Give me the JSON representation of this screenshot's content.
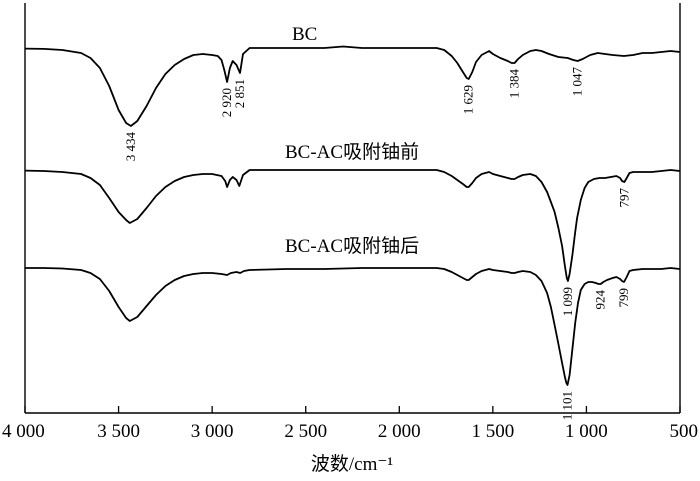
{
  "chart_data": {
    "type": "line",
    "xlabel": "波数/cm⁻¹",
    "ylabel": "",
    "xlim": [
      4000,
      500
    ],
    "x_reversed": true,
    "y_axis_shown": false,
    "grid": false,
    "x_ticks": [
      4000,
      3500,
      3000,
      2500,
      2000,
      1500,
      1000,
      500
    ],
    "x_tick_labels": [
      "4 000",
      "3 500",
      "3 000",
      "2 500",
      "2 000",
      "1 500",
      "1 000",
      "500"
    ],
    "series": [
      {
        "name": "BC",
        "points": [
          [
            4000,
            0.6
          ],
          [
            3900,
            0.9
          ],
          [
            3800,
            2
          ],
          [
            3700,
            5
          ],
          [
            3650,
            10
          ],
          [
            3600,
            20
          ],
          [
            3550,
            38
          ],
          [
            3500,
            62
          ],
          [
            3460,
            75
          ],
          [
            3434,
            78
          ],
          [
            3400,
            73
          ],
          [
            3350,
            58
          ],
          [
            3300,
            40
          ],
          [
            3250,
            26
          ],
          [
            3200,
            17
          ],
          [
            3150,
            11
          ],
          [
            3100,
            7
          ],
          [
            3050,
            6
          ],
          [
            3000,
            7
          ],
          [
            2970,
            8
          ],
          [
            2950,
            12
          ],
          [
            2935,
            22
          ],
          [
            2920,
            34
          ],
          [
            2905,
            20
          ],
          [
            2890,
            13
          ],
          [
            2870,
            17
          ],
          [
            2851,
            25
          ],
          [
            2835,
            6
          ],
          [
            2800,
            0
          ],
          [
            2600,
            0
          ],
          [
            2400,
            0
          ],
          [
            2300,
            -1.5
          ],
          [
            2200,
            0
          ],
          [
            2000,
            0
          ],
          [
            1800,
            0
          ],
          [
            1760,
            2
          ],
          [
            1720,
            8
          ],
          [
            1690,
            15
          ],
          [
            1660,
            24
          ],
          [
            1640,
            30
          ],
          [
            1629,
            31
          ],
          [
            1610,
            24
          ],
          [
            1590,
            14
          ],
          [
            1560,
            7
          ],
          [
            1520,
            3
          ],
          [
            1500,
            6
          ],
          [
            1460,
            10
          ],
          [
            1420,
            13
          ],
          [
            1400,
            15
          ],
          [
            1384,
            15
          ],
          [
            1365,
            11
          ],
          [
            1340,
            7
          ],
          [
            1300,
            3
          ],
          [
            1270,
            2
          ],
          [
            1240,
            3
          ],
          [
            1200,
            6
          ],
          [
            1150,
            9
          ],
          [
            1100,
            10
          ],
          [
            1070,
            12
          ],
          [
            1047,
            13
          ],
          [
            1020,
            11
          ],
          [
            980,
            7
          ],
          [
            940,
            5
          ],
          [
            900,
            6
          ],
          [
            860,
            7
          ],
          [
            800,
            8
          ],
          [
            750,
            7
          ],
          [
            700,
            5
          ],
          [
            650,
            5
          ],
          [
            600,
            4
          ],
          [
            550,
            3
          ],
          [
            500,
            4
          ]
        ]
      },
      {
        "name": "BC-AC吸附铀前",
        "points": [
          [
            4000,
            0.6
          ],
          [
            3900,
            1
          ],
          [
            3800,
            2
          ],
          [
            3700,
            4
          ],
          [
            3650,
            8
          ],
          [
            3600,
            15
          ],
          [
            3550,
            28
          ],
          [
            3500,
            42
          ],
          [
            3460,
            50
          ],
          [
            3440,
            53
          ],
          [
            3400,
            49
          ],
          [
            3350,
            38
          ],
          [
            3300,
            26
          ],
          [
            3250,
            17
          ],
          [
            3200,
            11
          ],
          [
            3150,
            7
          ],
          [
            3100,
            5
          ],
          [
            3050,
            4
          ],
          [
            3000,
            4
          ],
          [
            2950,
            6
          ],
          [
            2930,
            11
          ],
          [
            2920,
            17
          ],
          [
            2905,
            10
          ],
          [
            2890,
            7
          ],
          [
            2870,
            10
          ],
          [
            2855,
            16
          ],
          [
            2835,
            5
          ],
          [
            2800,
            0
          ],
          [
            2600,
            0
          ],
          [
            2400,
            0
          ],
          [
            2200,
            0
          ],
          [
            2000,
            0
          ],
          [
            1800,
            0
          ],
          [
            1760,
            2
          ],
          [
            1720,
            6
          ],
          [
            1690,
            10
          ],
          [
            1660,
            14
          ],
          [
            1640,
            17
          ],
          [
            1629,
            17
          ],
          [
            1610,
            13
          ],
          [
            1590,
            8
          ],
          [
            1560,
            4
          ],
          [
            1520,
            2
          ],
          [
            1500,
            4
          ],
          [
            1460,
            6
          ],
          [
            1420,
            8
          ],
          [
            1400,
            9
          ],
          [
            1384,
            9
          ],
          [
            1365,
            7
          ],
          [
            1340,
            5
          ],
          [
            1300,
            4
          ],
          [
            1270,
            6
          ],
          [
            1240,
            12
          ],
          [
            1210,
            22
          ],
          [
            1190,
            32
          ],
          [
            1170,
            42
          ],
          [
            1150,
            58
          ],
          [
            1130,
            76
          ],
          [
            1115,
            96
          ],
          [
            1105,
            108
          ],
          [
            1099,
            111
          ],
          [
            1090,
            104
          ],
          [
            1075,
            85
          ],
          [
            1060,
            62
          ],
          [
            1050,
            48
          ],
          [
            1030,
            30
          ],
          [
            1010,
            18
          ],
          [
            990,
            12
          ],
          [
            960,
            9
          ],
          [
            930,
            8
          ],
          [
            900,
            8
          ],
          [
            870,
            7
          ],
          [
            840,
            6
          ],
          [
            820,
            8
          ],
          [
            810,
            11
          ],
          [
            797,
            12
          ],
          [
            785,
            8
          ],
          [
            770,
            3
          ],
          [
            750,
            2
          ],
          [
            700,
            2
          ],
          [
            650,
            2
          ],
          [
            600,
            1
          ],
          [
            550,
            0
          ],
          [
            500,
            1
          ]
        ]
      },
      {
        "name": "BC-AC吸附铀后",
        "points": [
          [
            4000,
            1
          ],
          [
            3900,
            1
          ],
          [
            3800,
            1.5
          ],
          [
            3700,
            3
          ],
          [
            3650,
            6
          ],
          [
            3600,
            12
          ],
          [
            3550,
            24
          ],
          [
            3500,
            40
          ],
          [
            3460,
            51
          ],
          [
            3440,
            54
          ],
          [
            3400,
            50
          ],
          [
            3350,
            39
          ],
          [
            3300,
            28
          ],
          [
            3250,
            19
          ],
          [
            3200,
            13
          ],
          [
            3150,
            9
          ],
          [
            3100,
            7
          ],
          [
            3050,
            6
          ],
          [
            3000,
            6
          ],
          [
            2950,
            7
          ],
          [
            2920,
            8
          ],
          [
            2900,
            6
          ],
          [
            2870,
            5
          ],
          [
            2850,
            6
          ],
          [
            2830,
            4
          ],
          [
            2800,
            3
          ],
          [
            2600,
            2
          ],
          [
            2400,
            2
          ],
          [
            2200,
            1
          ],
          [
            2000,
            1
          ],
          [
            1800,
            1
          ],
          [
            1760,
            2
          ],
          [
            1720,
            5
          ],
          [
            1690,
            8
          ],
          [
            1660,
            11
          ],
          [
            1640,
            13
          ],
          [
            1629,
            13
          ],
          [
            1610,
            10
          ],
          [
            1590,
            7
          ],
          [
            1560,
            4
          ],
          [
            1520,
            2
          ],
          [
            1500,
            3
          ],
          [
            1460,
            4
          ],
          [
            1420,
            5
          ],
          [
            1400,
            6
          ],
          [
            1384,
            6
          ],
          [
            1365,
            5
          ],
          [
            1340,
            4
          ],
          [
            1300,
            5
          ],
          [
            1270,
            8
          ],
          [
            1240,
            14
          ],
          [
            1210,
            26
          ],
          [
            1190,
            40
          ],
          [
            1170,
            58
          ],
          [
            1150,
            77
          ],
          [
            1130,
            96
          ],
          [
            1115,
            110
          ],
          [
            1107,
            116
          ],
          [
            1101,
            118
          ],
          [
            1090,
            108
          ],
          [
            1075,
            82
          ],
          [
            1060,
            56
          ],
          [
            1045,
            36
          ],
          [
            1030,
            23
          ],
          [
            1010,
            17
          ],
          [
            990,
            15
          ],
          [
            970,
            15
          ],
          [
            950,
            16
          ],
          [
            935,
            17
          ],
          [
            924,
            17
          ],
          [
            910,
            15
          ],
          [
            890,
            13
          ],
          [
            860,
            11
          ],
          [
            840,
            10
          ],
          [
            820,
            12
          ],
          [
            810,
            14
          ],
          [
            799,
            15
          ],
          [
            785,
            10
          ],
          [
            770,
            4
          ],
          [
            750,
            3
          ],
          [
            700,
            2
          ],
          [
            650,
            2
          ],
          [
            600,
            2
          ],
          [
            550,
            1
          ],
          [
            500,
            2
          ]
        ]
      }
    ],
    "annotations": [
      {
        "series": 0,
        "x": 3434,
        "text": "3 434"
      },
      {
        "series": 0,
        "x": 2920,
        "text": "2 920"
      },
      {
        "series": 0,
        "x": 2851,
        "text": "2 851"
      },
      {
        "series": 0,
        "x": 1629,
        "text": "1 629"
      },
      {
        "series": 0,
        "x": 1384,
        "text": "1 384"
      },
      {
        "series": 0,
        "x": 1047,
        "text": "1 047"
      },
      {
        "series": 1,
        "x": 797,
        "text": "797"
      },
      {
        "series": 1,
        "x": 1099,
        "text": "1 099"
      },
      {
        "series": 2,
        "x": 924,
        "text": "924"
      },
      {
        "series": 2,
        "x": 799,
        "text": "799"
      },
      {
        "series": 2,
        "x": 1101,
        "text": "1 101"
      }
    ]
  }
}
